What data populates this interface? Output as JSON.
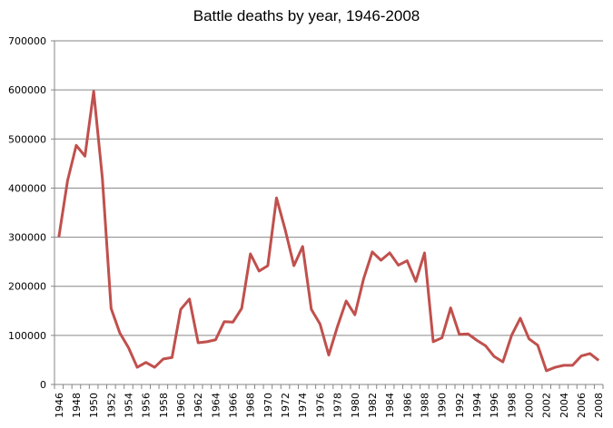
{
  "chart_data": {
    "type": "line",
    "title": "Battle deaths by year, 1946-2008",
    "xlabel": "",
    "ylabel": "",
    "ylim": [
      0,
      700000
    ],
    "yticks": [
      0,
      100000,
      200000,
      300000,
      400000,
      500000,
      600000,
      700000
    ],
    "grid": true,
    "legend": "none",
    "line_color": "#c0504d",
    "x": [
      1946,
      1947,
      1948,
      1949,
      1950,
      1951,
      1952,
      1953,
      1954,
      1955,
      1956,
      1957,
      1958,
      1959,
      1960,
      1961,
      1962,
      1963,
      1964,
      1965,
      1966,
      1967,
      1968,
      1969,
      1970,
      1971,
      1972,
      1973,
      1974,
      1975,
      1976,
      1977,
      1978,
      1979,
      1980,
      1981,
      1982,
      1983,
      1984,
      1985,
      1986,
      1987,
      1988,
      1989,
      1990,
      1991,
      1992,
      1993,
      1994,
      1995,
      1996,
      1997,
      1998,
      1999,
      2000,
      2001,
      2002,
      2003,
      2004,
      2005,
      2006,
      2007,
      2008
    ],
    "values": [
      300000,
      415000,
      487000,
      465000,
      597000,
      420000,
      155000,
      105000,
      75000,
      35000,
      45000,
      35000,
      52000,
      55000,
      153000,
      174000,
      85000,
      87000,
      91000,
      128000,
      127000,
      155000,
      266000,
      231000,
      242000,
      380000,
      315000,
      242000,
      281000,
      153000,
      123000,
      60000,
      118000,
      170000,
      142000,
      215000,
      270000,
      253000,
      268000,
      243000,
      252000,
      210000,
      268000,
      87000,
      95000,
      156000,
      102000,
      103000,
      90000,
      79000,
      57000,
      46000,
      100000,
      135000,
      93000,
      80000,
      28000,
      35000,
      39000,
      39000,
      58000,
      63000,
      49000
    ]
  }
}
